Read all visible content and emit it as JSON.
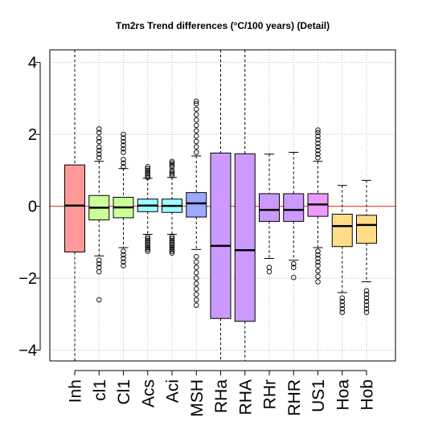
{
  "chart_data": {
    "type": "box",
    "title": "Tm2rs Trend differences (°C/100 years) (Detail)",
    "xlabel": "",
    "ylabel": "",
    "ylim": [
      -4.3,
      4.35
    ],
    "yticks": [
      -4,
      -2,
      0,
      2,
      4
    ],
    "ytick_labels": [
      "−4",
      "−2",
      "0",
      "2",
      "4"
    ],
    "grid": true,
    "reference_line": {
      "y": 0,
      "color": "#e0302a"
    },
    "categories": [
      "Inh",
      "cl1",
      "Cl1",
      "Acs",
      "Aci",
      "MSH",
      "RHa",
      "RHA",
      "RHr",
      "RHR",
      "US1",
      "Hoa",
      "Hob"
    ],
    "series": [
      {
        "values": [
          {
            "label": "Inh",
            "color": "#ff9999",
            "lower_whisker": -4.3,
            "q1": -1.27,
            "median": 0.02,
            "q3": 1.15,
            "upper_whisker": 4.35,
            "outliers": []
          },
          {
            "label": "cl1",
            "color": "#ccff99",
            "lower_whisker": -1.38,
            "q1": -0.38,
            "median": -0.04,
            "q3": 0.3,
            "upper_whisker": 1.25,
            "outliers": [
              -2.6,
              -1.82,
              -1.7,
              -1.6,
              -1.5,
              1.35,
              1.45,
              1.55,
              1.65,
              1.8,
              1.9,
              2.05,
              2.15
            ]
          },
          {
            "label": "Cl1",
            "color": "#ccff99",
            "lower_whisker": -1.15,
            "q1": -0.32,
            "median": -0.03,
            "q3": 0.25,
            "upper_whisker": 1.05,
            "outliers": [
              -1.65,
              -1.55,
              -1.45,
              -1.35,
              -1.25,
              1.1,
              1.2,
              1.3,
              1.5,
              1.6,
              1.7,
              1.8,
              1.9,
              2.0
            ]
          },
          {
            "label": "Acs",
            "color": "#99ffff",
            "lower_whisker": -0.78,
            "q1": -0.15,
            "median": 0.02,
            "q3": 0.2,
            "upper_whisker": 0.78,
            "outliers": [
              -1.25,
              -1.2,
              -1.15,
              -1.1,
              -1.05,
              -1.0,
              -0.95,
              -0.9,
              -0.85,
              0.8,
              0.85,
              0.9,
              0.95,
              1.0,
              1.05,
              1.1
            ]
          },
          {
            "label": "Aci",
            "color": "#99ffff",
            "lower_whisker": -0.78,
            "q1": -0.17,
            "median": 0.01,
            "q3": 0.2,
            "upper_whisker": 0.8,
            "outliers": [
              -1.3,
              -1.25,
              -1.2,
              -1.15,
              -1.1,
              -1.05,
              -1.0,
              -0.95,
              -0.9,
              -0.85,
              0.85,
              0.9,
              0.95,
              1.0,
              1.1,
              1.15,
              1.2,
              1.25
            ]
          },
          {
            "label": "MSH",
            "color": "#99aaff",
            "lower_whisker": -1.2,
            "q1": -0.3,
            "median": 0.08,
            "q3": 0.38,
            "upper_whisker": 1.4,
            "outliers": [
              -2.75,
              -2.6,
              -2.45,
              -2.3,
              -2.15,
              -2.0,
              -1.85,
              -1.7,
              -1.55,
              -1.4,
              1.5,
              1.65,
              1.8,
              1.95,
              2.1,
              2.25,
              2.4,
              2.55,
              2.7,
              2.85,
              2.92
            ]
          },
          {
            "label": "RHa",
            "color": "#cc99ff",
            "lower_whisker": -4.3,
            "q1": -3.12,
            "median": -1.1,
            "q3": 1.48,
            "upper_whisker": 4.35,
            "outliers": []
          },
          {
            "label": "RHA",
            "color": "#cc99ff",
            "lower_whisker": -4.3,
            "q1": -3.2,
            "median": -1.22,
            "q3": 1.46,
            "upper_whisker": 4.35,
            "outliers": []
          },
          {
            "label": "RHr",
            "color": "#cc99ff",
            "lower_whisker": -1.45,
            "q1": -0.42,
            "median": -0.1,
            "q3": 0.35,
            "upper_whisker": 1.45,
            "outliers": [
              -1.82,
              -1.7
            ]
          },
          {
            "label": "RHR",
            "color": "#cc99ff",
            "lower_whisker": -1.5,
            "q1": -0.42,
            "median": -0.1,
            "q3": 0.35,
            "upper_whisker": 1.5,
            "outliers": [
              -1.98,
              -1.7,
              -1.6
            ]
          },
          {
            "label": "US1",
            "color": "#ee99ff",
            "lower_whisker": -1.15,
            "q1": -0.28,
            "median": 0.05,
            "q3": 0.35,
            "upper_whisker": 1.25,
            "outliers": [
              -2.1,
              -1.95,
              -1.8,
              -1.65,
              -1.55,
              -1.45,
              -1.35,
              -1.25,
              1.35,
              1.45,
              1.55,
              1.65,
              1.75,
              1.85,
              1.95,
              2.05,
              2.12
            ]
          },
          {
            "label": "Hoa",
            "color": "#ffdd88",
            "lower_whisker": -2.4,
            "q1": -1.12,
            "median": -0.55,
            "q3": -0.22,
            "upper_whisker": 0.58,
            "outliers": [
              -2.95,
              -2.85,
              -2.75,
              -2.65,
              -2.55
            ]
          },
          {
            "label": "Hob",
            "color": "#ffdd88",
            "lower_whisker": -2.1,
            "q1": -1.03,
            "median": -0.52,
            "q3": -0.25,
            "upper_whisker": 0.72,
            "outliers": [
              -2.95,
              -2.85,
              -2.75,
              -2.65,
              -2.55,
              -2.45,
              -2.35
            ]
          }
        ]
      }
    ]
  }
}
